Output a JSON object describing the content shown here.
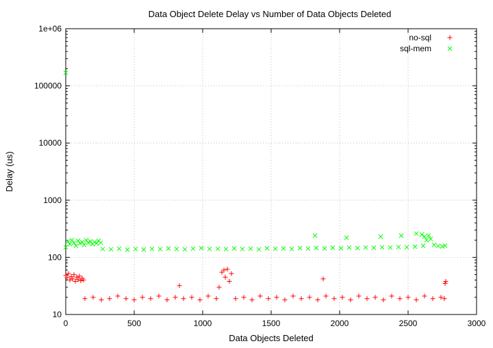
{
  "chart_data": {
    "type": "scatter",
    "title": "Data Object Delete Delay vs Number of Data Objects Deleted",
    "xlabel": "Data Objects Deleted",
    "ylabel": "Delay (us)",
    "xlim": [
      0,
      3000
    ],
    "ylim": [
      10,
      1000000
    ],
    "yscale": "log",
    "grid": true,
    "legend": "top-right",
    "x_ticks": [
      0,
      500,
      1000,
      1500,
      2000,
      2500,
      3000
    ],
    "x_tick_labels": [
      "0",
      "500",
      "1000",
      "1500",
      "2000",
      "2500",
      "3000"
    ],
    "y_ticks": [
      10,
      100,
      1000,
      10000,
      100000,
      1000000
    ],
    "y_tick_labels": [
      "10",
      "100",
      "1000",
      "10000",
      "100000",
      "1e+06"
    ],
    "series": [
      {
        "name": "no-sql",
        "color": "#ff0000",
        "marker": "+",
        "points": [
          [
            0,
            48
          ],
          [
            10,
            44
          ],
          [
            20,
            52
          ],
          [
            30,
            40
          ],
          [
            40,
            46
          ],
          [
            50,
            42
          ],
          [
            60,
            50
          ],
          [
            70,
            38
          ],
          [
            80,
            45
          ],
          [
            90,
            41
          ],
          [
            100,
            47
          ],
          [
            110,
            39
          ],
          [
            120,
            43
          ],
          [
            130,
            40
          ],
          [
            140,
            19
          ],
          [
            200,
            20
          ],
          [
            260,
            18
          ],
          [
            320,
            19
          ],
          [
            380,
            21
          ],
          [
            440,
            19
          ],
          [
            500,
            18
          ],
          [
            560,
            20
          ],
          [
            620,
            19
          ],
          [
            680,
            21
          ],
          [
            740,
            18
          ],
          [
            800,
            20
          ],
          [
            830,
            32
          ],
          [
            860,
            19
          ],
          [
            920,
            20
          ],
          [
            980,
            18
          ],
          [
            1040,
            21
          ],
          [
            1100,
            19
          ],
          [
            1120,
            30
          ],
          [
            1140,
            55
          ],
          [
            1155,
            60
          ],
          [
            1165,
            45
          ],
          [
            1180,
            62
          ],
          [
            1195,
            38
          ],
          [
            1210,
            52
          ],
          [
            1240,
            19
          ],
          [
            1300,
            20
          ],
          [
            1360,
            18
          ],
          [
            1420,
            21
          ],
          [
            1480,
            19
          ],
          [
            1540,
            20
          ],
          [
            1600,
            18
          ],
          [
            1660,
            21
          ],
          [
            1720,
            19
          ],
          [
            1780,
            20
          ],
          [
            1840,
            18
          ],
          [
            1880,
            42
          ],
          [
            1900,
            21
          ],
          [
            1960,
            19
          ],
          [
            2020,
            20
          ],
          [
            2080,
            18
          ],
          [
            2140,
            21
          ],
          [
            2200,
            19
          ],
          [
            2260,
            20
          ],
          [
            2320,
            18
          ],
          [
            2380,
            21
          ],
          [
            2440,
            19
          ],
          [
            2500,
            20
          ],
          [
            2560,
            18
          ],
          [
            2620,
            21
          ],
          [
            2680,
            19
          ],
          [
            2740,
            20
          ],
          [
            2770,
            35
          ],
          [
            2775,
            38
          ],
          [
            2765,
            19
          ]
        ]
      },
      {
        "name": "sql-mem",
        "color": "#00ff00",
        "marker": "x",
        "points": [
          [
            0,
            170000
          ],
          [
            0,
            150
          ],
          [
            15,
            190
          ],
          [
            30,
            170
          ],
          [
            45,
            200
          ],
          [
            60,
            180
          ],
          [
            75,
            160
          ],
          [
            90,
            195
          ],
          [
            105,
            175
          ],
          [
            120,
            185
          ],
          [
            135,
            165
          ],
          [
            150,
            200
          ],
          [
            165,
            180
          ],
          [
            180,
            190
          ],
          [
            195,
            170
          ],
          [
            210,
            185
          ],
          [
            225,
            175
          ],
          [
            240,
            195
          ],
          [
            255,
            180
          ],
          [
            270,
            140
          ],
          [
            330,
            138
          ],
          [
            390,
            142
          ],
          [
            450,
            136
          ],
          [
            510,
            140
          ],
          [
            570,
            137
          ],
          [
            630,
            141
          ],
          [
            690,
            139
          ],
          [
            750,
            143
          ],
          [
            810,
            140
          ],
          [
            870,
            138
          ],
          [
            930,
            142
          ],
          [
            990,
            145
          ],
          [
            1050,
            140
          ],
          [
            1110,
            141
          ],
          [
            1170,
            139
          ],
          [
            1230,
            143
          ],
          [
            1290,
            140
          ],
          [
            1350,
            142
          ],
          [
            1410,
            138
          ],
          [
            1470,
            144
          ],
          [
            1530,
            141
          ],
          [
            1590,
            143
          ],
          [
            1650,
            140
          ],
          [
            1710,
            145
          ],
          [
            1770,
            142
          ],
          [
            1830,
            146
          ],
          [
            1890,
            143
          ],
          [
            1950,
            147
          ],
          [
            2010,
            144
          ],
          [
            2070,
            148
          ],
          [
            2130,
            145
          ],
          [
            2190,
            149
          ],
          [
            2250,
            147
          ],
          [
            2310,
            150
          ],
          [
            2370,
            148
          ],
          [
            2430,
            152
          ],
          [
            2490,
            150
          ],
          [
            2550,
            154
          ],
          [
            2610,
            160
          ],
          [
            2620,
            230
          ],
          [
            2635,
            200
          ],
          [
            2650,
            240
          ],
          [
            2665,
            210
          ],
          [
            2690,
            165
          ],
          [
            2720,
            158
          ],
          [
            2750,
            155
          ],
          [
            2770,
            160
          ],
          [
            1820,
            240
          ],
          [
            2050,
            220
          ],
          [
            2300,
            230
          ],
          [
            2450,
            240
          ],
          [
            2560,
            260
          ],
          [
            2600,
            250
          ]
        ]
      }
    ]
  }
}
